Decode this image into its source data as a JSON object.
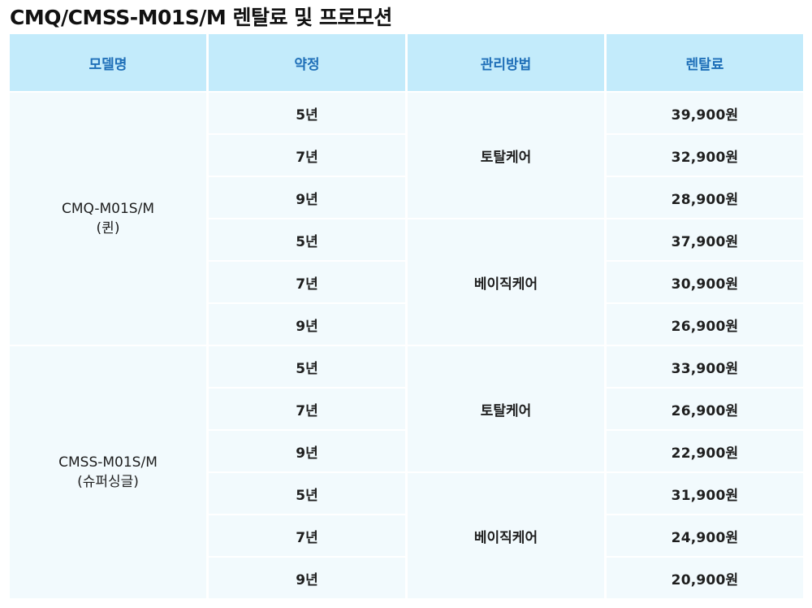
{
  "page_title": "CMQ/CMSS-M01S/M 렌탈료 및 프로모션",
  "table": {
    "headers": [
      "모델명",
      "약정",
      "관리방법",
      "렌탈료"
    ],
    "models": [
      {
        "name": "CMQ-M01S/M",
        "subname": "(퀸)",
        "groups": [
          {
            "method": "토탈케어",
            "rows": [
              {
                "term": "5년",
                "fee": "39,900원"
              },
              {
                "term": "7년",
                "fee": "32,900원"
              },
              {
                "term": "9년",
                "fee": "28,900원"
              }
            ]
          },
          {
            "method": "베이직케어",
            "rows": [
              {
                "term": "5년",
                "fee": "37,900원"
              },
              {
                "term": "7년",
                "fee": "30,900원"
              },
              {
                "term": "9년",
                "fee": "26,900원"
              }
            ]
          }
        ]
      },
      {
        "name": "CMSS-M01S/M",
        "subname": "(슈퍼싱글)",
        "groups": [
          {
            "method": "토탈케어",
            "rows": [
              {
                "term": "5년",
                "fee": "33,900원"
              },
              {
                "term": "7년",
                "fee": "26,900원"
              },
              {
                "term": "9년",
                "fee": "22,900원"
              }
            ]
          },
          {
            "method": "베이직케어",
            "rows": [
              {
                "term": "5년",
                "fee": "31,900원"
              },
              {
                "term": "7년",
                "fee": "24,900원"
              },
              {
                "term": "9년",
                "fee": "20,900원"
              }
            ]
          }
        ]
      }
    ]
  },
  "colors": {
    "header_bg": "#c3ebfb",
    "header_text": "#1f6fb8",
    "cell_bg": "#f2fafd"
  }
}
